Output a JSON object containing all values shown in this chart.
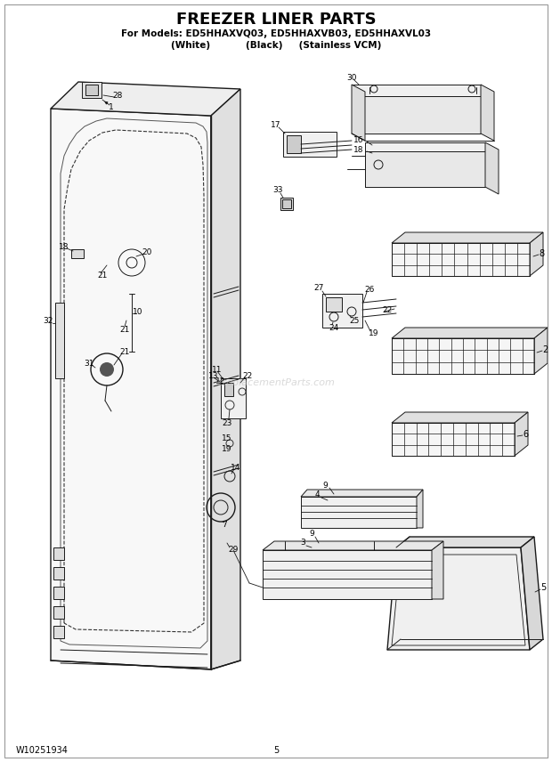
{
  "title_line1": "FREEZER LINER PARTS",
  "title_line2": "For Models: ED5HHAXVQ03, ED5HHAXVB03, ED5HHAXVL03",
  "title_line3": "(White)           (Black)     (Stainless VCM)",
  "footer_left": "W10251934",
  "footer_center": "5",
  "bg": "#ffffff",
  "lc": "#1a1a1a"
}
